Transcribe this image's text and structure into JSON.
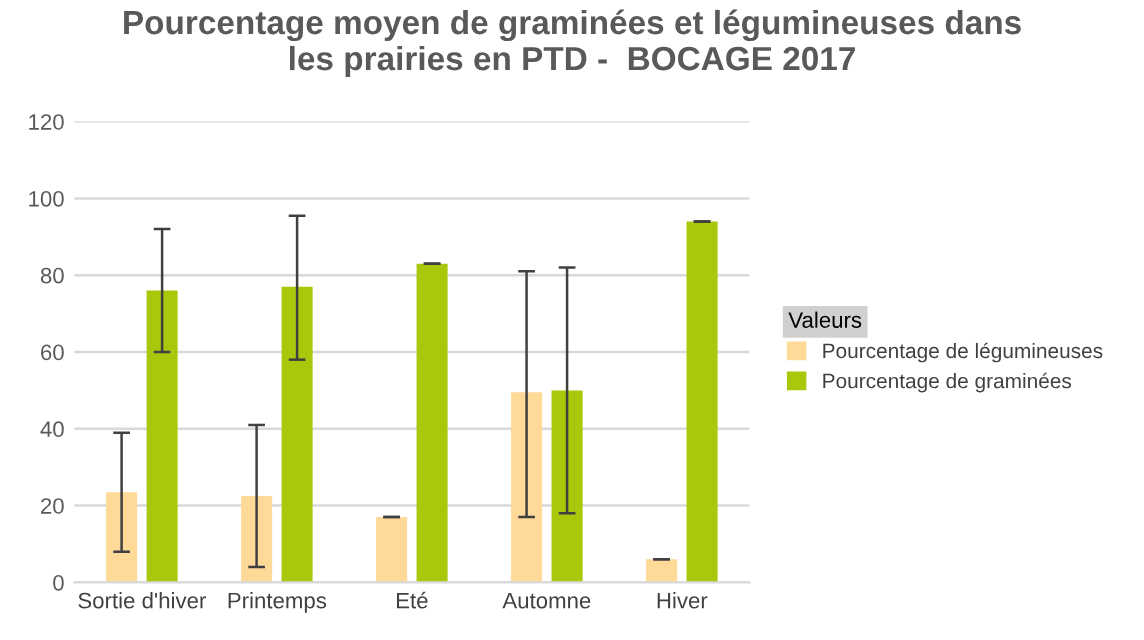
{
  "chart_data": {
    "type": "bar",
    "title": "Pourcentage moyen de graminées et légumineuses dans\nles prairies en PTD -  BOCAGE 2017",
    "categories": [
      "Sortie d'hiver",
      "Printemps",
      "Eté",
      "Automne",
      "Hiver"
    ],
    "series": [
      {
        "name": "Pourcentage de légumineuses",
        "color": "#ffd998",
        "values": [
          23.5,
          22.5,
          17,
          49.5,
          6
        ],
        "errors": [
          [
            8,
            39
          ],
          [
            4,
            41
          ],
          0,
          [
            17,
            81
          ],
          0
        ]
      },
      {
        "name": "Pourcentage de graminées",
        "color": "#a9c80c",
        "values": [
          76,
          77,
          83,
          50,
          94
        ],
        "errors": [
          [
            60,
            92
          ],
          [
            58,
            95.5
          ],
          0,
          [
            18,
            82
          ],
          0
        ]
      }
    ],
    "ylim": [
      0,
      120
    ],
    "yticks": [
      0,
      20,
      40,
      60,
      80,
      100,
      120
    ],
    "grid": "y",
    "legend": "right",
    "legend_title": "Valeurs"
  }
}
